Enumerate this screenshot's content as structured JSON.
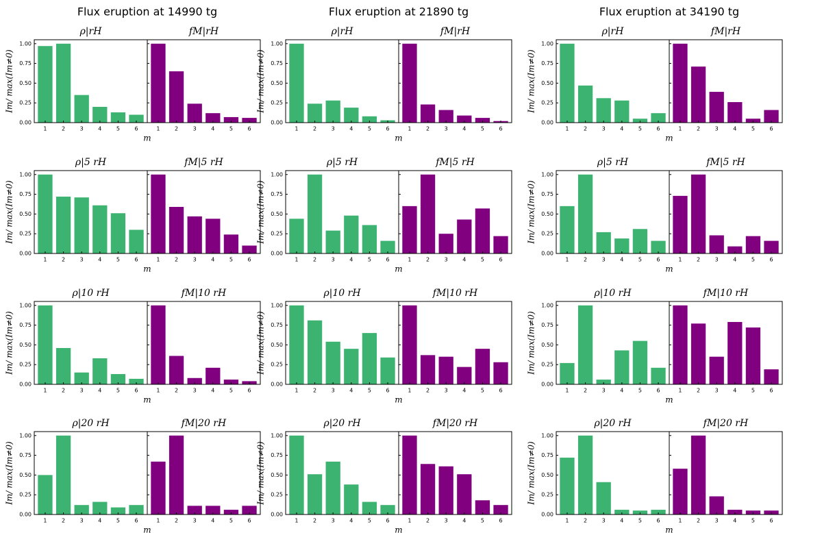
{
  "figure_titles": [
    "Flux eruption at 14990 tg",
    "Flux eruption at 21890 tg",
    "Flux eruption at 34190 tg"
  ],
  "chart_data": [
    {
      "type": "bar",
      "title": "ρ|rH",
      "categories": [
        "1",
        "2",
        "3",
        "4",
        "5",
        "6"
      ],
      "values": [
        0.97,
        1,
        0.35,
        0.2,
        0.13,
        0.1
      ],
      "color": "#3cb371",
      "ylim": [
        0,
        1.05
      ],
      "yticks": [
        {
          "value": 0,
          "label": "0.00"
        },
        {
          "value": 0.25,
          "label": "0.25"
        },
        {
          "value": 0.5,
          "label": "0.50"
        },
        {
          "value": 0.75,
          "label": "0.75"
        },
        {
          "value": 1,
          "label": "1.00"
        }
      ],
      "xlabel": "m",
      "ylabel": "Im/ max(Im≠0)"
    },
    {
      "type": "bar",
      "title": "fM|rH",
      "categories": [
        "1",
        "2",
        "3",
        "4",
        "5",
        "6"
      ],
      "values": [
        1,
        0.65,
        0.24,
        0.12,
        0.07,
        0.06
      ],
      "color": "#800080",
      "ylim": [
        0,
        1.05
      ],
      "yticks": [
        0,
        0.25,
        0.5,
        0.75,
        1
      ]
    },
    {
      "type": "bar",
      "title": "ρ|5 rH",
      "categories": [
        "1",
        "2",
        "3",
        "4",
        "5",
        "6"
      ],
      "values": [
        1,
        0.72,
        0.71,
        0.61,
        0.51,
        0.3
      ],
      "color": "#3cb371",
      "ylim": [
        0,
        1.05
      ],
      "yticks": [
        {
          "value": 0,
          "label": "0.00"
        },
        {
          "value": 0.25,
          "label": "0.25"
        },
        {
          "value": 0.5,
          "label": "0.50"
        },
        {
          "value": 0.75,
          "label": "0.75"
        },
        {
          "value": 1,
          "label": "1.00"
        }
      ],
      "xlabel": "m",
      "ylabel": "Im/ max(Im≠0)"
    },
    {
      "type": "bar",
      "title": "fM|5 rH",
      "categories": [
        "1",
        "2",
        "3",
        "4",
        "5",
        "6"
      ],
      "values": [
        1,
        0.59,
        0.47,
        0.44,
        0.24,
        0.1
      ],
      "color": "#800080",
      "ylim": [
        0,
        1.05
      ],
      "yticks": [
        0,
        0.25,
        0.5,
        0.75,
        1
      ]
    },
    {
      "type": "bar",
      "title": "ρ|10 rH",
      "categories": [
        "1",
        "2",
        "3",
        "4",
        "5",
        "6"
      ],
      "values": [
        1,
        0.46,
        0.15,
        0.33,
        0.13,
        0.07
      ],
      "color": "#3cb371",
      "ylim": [
        0,
        1.05
      ],
      "yticks": [
        {
          "value": 0,
          "label": "0.00"
        },
        {
          "value": 0.25,
          "label": "0.25"
        },
        {
          "value": 0.5,
          "label": "0.50"
        },
        {
          "value": 0.75,
          "label": "0.75"
        },
        {
          "value": 1,
          "label": "1.00"
        }
      ],
      "xlabel": "m",
      "ylabel": "Im/ max(Im≠0)"
    },
    {
      "type": "bar",
      "title": "fM|10 rH",
      "categories": [
        "1",
        "2",
        "3",
        "4",
        "5",
        "6"
      ],
      "values": [
        1,
        0.36,
        0.08,
        0.21,
        0.06,
        0.04
      ],
      "color": "#800080",
      "ylim": [
        0,
        1.05
      ],
      "yticks": [
        0,
        0.25,
        0.5,
        0.75,
        1
      ]
    },
    {
      "type": "bar",
      "title": "ρ|20 rH",
      "categories": [
        "1",
        "2",
        "3",
        "4",
        "5",
        "6"
      ],
      "values": [
        0.5,
        1,
        0.12,
        0.16,
        0.09,
        0.12
      ],
      "color": "#3cb371",
      "ylim": [
        0,
        1.05
      ],
      "yticks": [
        {
          "value": 0,
          "label": "0.00"
        },
        {
          "value": 0.25,
          "label": "0.25"
        },
        {
          "value": 0.5,
          "label": "0.50"
        },
        {
          "value": 0.75,
          "label": "0.75"
        },
        {
          "value": 1,
          "label": "1.00"
        }
      ],
      "xlabel": "m",
      "ylabel": "Im/ max(Im≠0)"
    },
    {
      "type": "bar",
      "title": "fM|20 rH",
      "categories": [
        "1",
        "2",
        "3",
        "4",
        "5",
        "6"
      ],
      "values": [
        0.67,
        1,
        0.11,
        0.11,
        0.06,
        0.11
      ],
      "color": "#800080",
      "ylim": [
        0,
        1.05
      ],
      "yticks": [
        0,
        0.25,
        0.5,
        0.75,
        1
      ]
    },
    {
      "type": "bar",
      "title": "ρ|rH",
      "categories": [
        "1",
        "2",
        "3",
        "4",
        "5",
        "6"
      ],
      "values": [
        1,
        0.24,
        0.28,
        0.19,
        0.08,
        0.03
      ],
      "color": "#3cb371",
      "ylim": [
        0,
        1.05
      ],
      "yticks": [
        {
          "value": 0,
          "label": "0.00"
        },
        {
          "value": 0.25,
          "label": "0.25"
        },
        {
          "value": 0.5,
          "label": "0.50"
        },
        {
          "value": 0.75,
          "label": "0.75"
        },
        {
          "value": 1,
          "label": "1.00"
        }
      ],
      "xlabel": "m",
      "ylabel": "Im/ max(Im≠0)"
    },
    {
      "type": "bar",
      "title": "fM|rH",
      "categories": [
        "1",
        "2",
        "3",
        "4",
        "5",
        "6"
      ],
      "values": [
        1,
        0.23,
        0.16,
        0.09,
        0.06,
        0.02
      ],
      "color": "#800080",
      "ylim": [
        0,
        1.05
      ],
      "yticks": [
        0,
        0.25,
        0.5,
        0.75,
        1
      ]
    },
    {
      "type": "bar",
      "title": "ρ|5 rH",
      "categories": [
        "1",
        "2",
        "3",
        "4",
        "5",
        "6"
      ],
      "values": [
        0.44,
        1,
        0.29,
        0.48,
        0.36,
        0.16
      ],
      "color": "#3cb371",
      "ylim": [
        0,
        1.05
      ],
      "yticks": [
        {
          "value": 0,
          "label": "0.00"
        },
        {
          "value": 0.25,
          "label": "0.25"
        },
        {
          "value": 0.5,
          "label": "0.50"
        },
        {
          "value": 0.75,
          "label": "0.75"
        },
        {
          "value": 1,
          "label": "1.00"
        }
      ],
      "xlabel": "m",
      "ylabel": "Im/ max(Im≠0)"
    },
    {
      "type": "bar",
      "title": "fM|5 rH",
      "categories": [
        "1",
        "2",
        "3",
        "4",
        "5",
        "6"
      ],
      "values": [
        0.6,
        1,
        0.25,
        0.43,
        0.57,
        0.22
      ],
      "color": "#800080",
      "ylim": [
        0,
        1.05
      ],
      "yticks": [
        0,
        0.25,
        0.5,
        0.75,
        1
      ]
    },
    {
      "type": "bar",
      "title": "ρ|10 rH",
      "categories": [
        "1",
        "2",
        "3",
        "4",
        "5",
        "6"
      ],
      "values": [
        1,
        0.81,
        0.54,
        0.45,
        0.65,
        0.34
      ],
      "color": "#3cb371",
      "ylim": [
        0,
        1.05
      ],
      "yticks": [
        {
          "value": 0,
          "label": "0.00"
        },
        {
          "value": 0.25,
          "label": "0.25"
        },
        {
          "value": 0.5,
          "label": "0.50"
        },
        {
          "value": 0.75,
          "label": "0.75"
        },
        {
          "value": 1,
          "label": "1.00"
        }
      ],
      "xlabel": "m",
      "ylabel": "Im/ max(Im≠0)"
    },
    {
      "type": "bar",
      "title": "fM|10 rH",
      "categories": [
        "1",
        "2",
        "3",
        "4",
        "5",
        "6"
      ],
      "values": [
        1,
        0.37,
        0.35,
        0.22,
        0.45,
        0.28
      ],
      "color": "#800080",
      "ylim": [
        0,
        1.05
      ],
      "yticks": [
        0,
        0.25,
        0.5,
        0.75,
        1
      ]
    },
    {
      "type": "bar",
      "title": "ρ|20 rH",
      "categories": [
        "1",
        "2",
        "3",
        "4",
        "5",
        "6"
      ],
      "values": [
        1,
        0.51,
        0.67,
        0.38,
        0.16,
        0.12
      ],
      "color": "#3cb371",
      "ylim": [
        0,
        1.05
      ],
      "yticks": [
        {
          "value": 0,
          "label": "0.00"
        },
        {
          "value": 0.25,
          "label": "0.25"
        },
        {
          "value": 0.5,
          "label": "0.50"
        },
        {
          "value": 0.75,
          "label": "0.75"
        },
        {
          "value": 1,
          "label": "1.00"
        }
      ],
      "xlabel": "m",
      "ylabel": "Im/ max(Im≠0)"
    },
    {
      "type": "bar",
      "title": "fM|20 rH",
      "categories": [
        "1",
        "2",
        "3",
        "4",
        "5",
        "6"
      ],
      "values": [
        1,
        0.64,
        0.61,
        0.51,
        0.18,
        0.12
      ],
      "color": "#800080",
      "ylim": [
        0,
        1.05
      ],
      "yticks": [
        0,
        0.25,
        0.5,
        0.75,
        1
      ]
    },
    {
      "type": "bar",
      "title": "ρ|rH",
      "categories": [
        "1",
        "2",
        "3",
        "4",
        "5",
        "6"
      ],
      "values": [
        1,
        0.47,
        0.31,
        0.28,
        0.05,
        0.12
      ],
      "color": "#3cb371",
      "ylim": [
        0,
        1.05
      ],
      "yticks": [
        {
          "value": 0,
          "label": "0.00"
        },
        {
          "value": 0.25,
          "label": "0.25"
        },
        {
          "value": 0.5,
          "label": "0.50"
        },
        {
          "value": 0.75,
          "label": "0.75"
        },
        {
          "value": 1,
          "label": "1.00"
        }
      ],
      "xlabel": "m",
      "ylabel": "Im/ max(Im≠0)"
    },
    {
      "type": "bar",
      "title": "fM|rH",
      "categories": [
        "1",
        "2",
        "3",
        "4",
        "5",
        "6"
      ],
      "values": [
        1,
        0.71,
        0.39,
        0.26,
        0.05,
        0.16
      ],
      "color": "#800080",
      "ylim": [
        0,
        1.05
      ],
      "yticks": [
        0,
        0.25,
        0.5,
        0.75,
        1
      ]
    },
    {
      "type": "bar",
      "title": "ρ|5 rH",
      "categories": [
        "1",
        "2",
        "3",
        "4",
        "5",
        "6"
      ],
      "values": [
        0.6,
        1,
        0.27,
        0.19,
        0.31,
        0.16
      ],
      "color": "#3cb371",
      "ylim": [
        0,
        1.05
      ],
      "yticks": [
        {
          "value": 0,
          "label": "0.00"
        },
        {
          "value": 0.25,
          "label": "0.25"
        },
        {
          "value": 0.5,
          "label": "0.50"
        },
        {
          "value": 0.75,
          "label": "0.75"
        },
        {
          "value": 1,
          "label": "1.00"
        }
      ],
      "xlabel": "m",
      "ylabel": "Im/ max(Im≠0)"
    },
    {
      "type": "bar",
      "title": "fM|5 rH",
      "categories": [
        "1",
        "2",
        "3",
        "4",
        "5",
        "6"
      ],
      "values": [
        0.73,
        1,
        0.23,
        0.09,
        0.22,
        0.16
      ],
      "color": "#800080",
      "ylim": [
        0,
        1.05
      ],
      "yticks": [
        0,
        0.25,
        0.5,
        0.75,
        1
      ]
    },
    {
      "type": "bar",
      "title": "ρ|10 rH",
      "categories": [
        "1",
        "2",
        "3",
        "4",
        "5",
        "6"
      ],
      "values": [
        0.27,
        1,
        0.06,
        0.43,
        0.55,
        0.21
      ],
      "color": "#3cb371",
      "ylim": [
        0,
        1.05
      ],
      "yticks": [
        {
          "value": 0,
          "label": "0.00"
        },
        {
          "value": 0.25,
          "label": "0.25"
        },
        {
          "value": 0.5,
          "label": "0.50"
        },
        {
          "value": 0.75,
          "label": "0.75"
        },
        {
          "value": 1,
          "label": "1.00"
        }
      ],
      "xlabel": "m",
      "ylabel": "Im/ max(Im≠0)"
    },
    {
      "type": "bar",
      "title": "fM|10 rH",
      "categories": [
        "1",
        "2",
        "3",
        "4",
        "5",
        "6"
      ],
      "values": [
        1,
        0.77,
        0.35,
        0.79,
        0.72,
        0.19
      ],
      "color": "#800080",
      "ylim": [
        0,
        1.05
      ],
      "yticks": [
        0,
        0.25,
        0.5,
        0.75,
        1
      ]
    },
    {
      "type": "bar",
      "title": "ρ|20 rH",
      "categories": [
        "1",
        "2",
        "3",
        "4",
        "5",
        "6"
      ],
      "values": [
        0.72,
        1,
        0.41,
        0.06,
        0.05,
        0.06
      ],
      "color": "#3cb371",
      "ylim": [
        0,
        1.05
      ],
      "yticks": [
        {
          "value": 0,
          "label": "0.00"
        },
        {
          "value": 0.25,
          "label": "0.25"
        },
        {
          "value": 0.5,
          "label": "0.50"
        },
        {
          "value": 0.75,
          "label": "0.75"
        },
        {
          "value": 1,
          "label": "1.00"
        }
      ],
      "xlabel": "m",
      "ylabel": "Im/ max(Im≠0)"
    },
    {
      "type": "bar",
      "title": "fM|20 rH",
      "categories": [
        "1",
        "2",
        "3",
        "4",
        "5",
        "6"
      ],
      "values": [
        0.58,
        1,
        0.23,
        0.06,
        0.05,
        0.05
      ],
      "color": "#800080",
      "ylim": [
        0,
        1.05
      ],
      "yticks": [
        0,
        0.25,
        0.5,
        0.75,
        1
      ]
    }
  ]
}
